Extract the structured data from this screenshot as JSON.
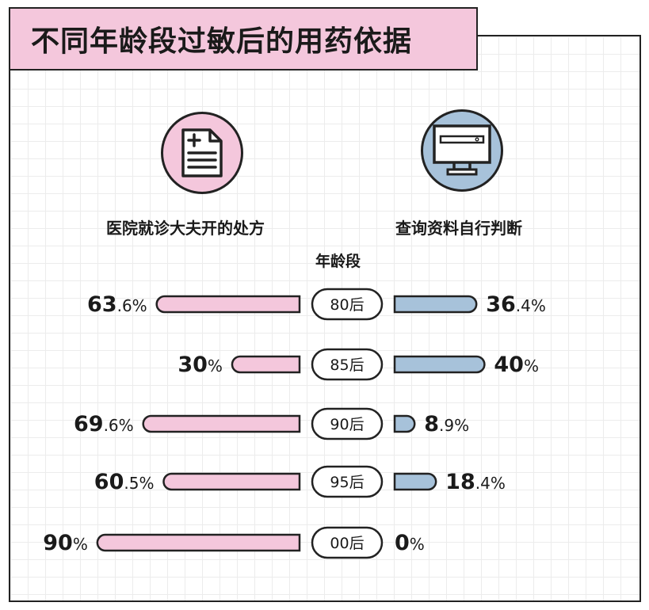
{
  "title": "不同年龄段过敏后的用药依据",
  "left_group": {
    "label": "医院就诊大夫开的处方",
    "icon": "prescription-document-icon",
    "color": "#f4c7dc"
  },
  "right_group": {
    "label": "查询资料自行判断",
    "icon": "computer-search-icon",
    "color": "#a7c2da"
  },
  "age_header": "年龄段",
  "chart_data": {
    "type": "bar",
    "categories": [
      "80后",
      "85后",
      "90后",
      "95后",
      "00后"
    ],
    "series": [
      {
        "name": "医院就诊大夫开的处方",
        "values": [
          63.6,
          30,
          69.6,
          60.5,
          90
        ],
        "color": "#f4c7dc"
      },
      {
        "name": "查询资料自行判断",
        "values": [
          36.4,
          40,
          8.9,
          18.4,
          0
        ],
        "color": "#a7c2da"
      }
    ],
    "value_labels_left": [
      {
        "int": "63",
        "dec": ".6%"
      },
      {
        "int": "30",
        "dec": "%"
      },
      {
        "int": "69",
        "dec": ".6%"
      },
      {
        "int": "60",
        "dec": ".5%"
      },
      {
        "int": "90",
        "dec": "%"
      }
    ],
    "value_labels_right": [
      {
        "int": "36",
        "dec": ".4%"
      },
      {
        "int": "40",
        "dec": "%"
      },
      {
        "int": "8",
        "dec": ".9%"
      },
      {
        "int": "18",
        "dec": ".4%"
      },
      {
        "int": "0",
        "dec": "%"
      }
    ],
    "orientation": "horizontal-diverging",
    "unit": "%"
  }
}
